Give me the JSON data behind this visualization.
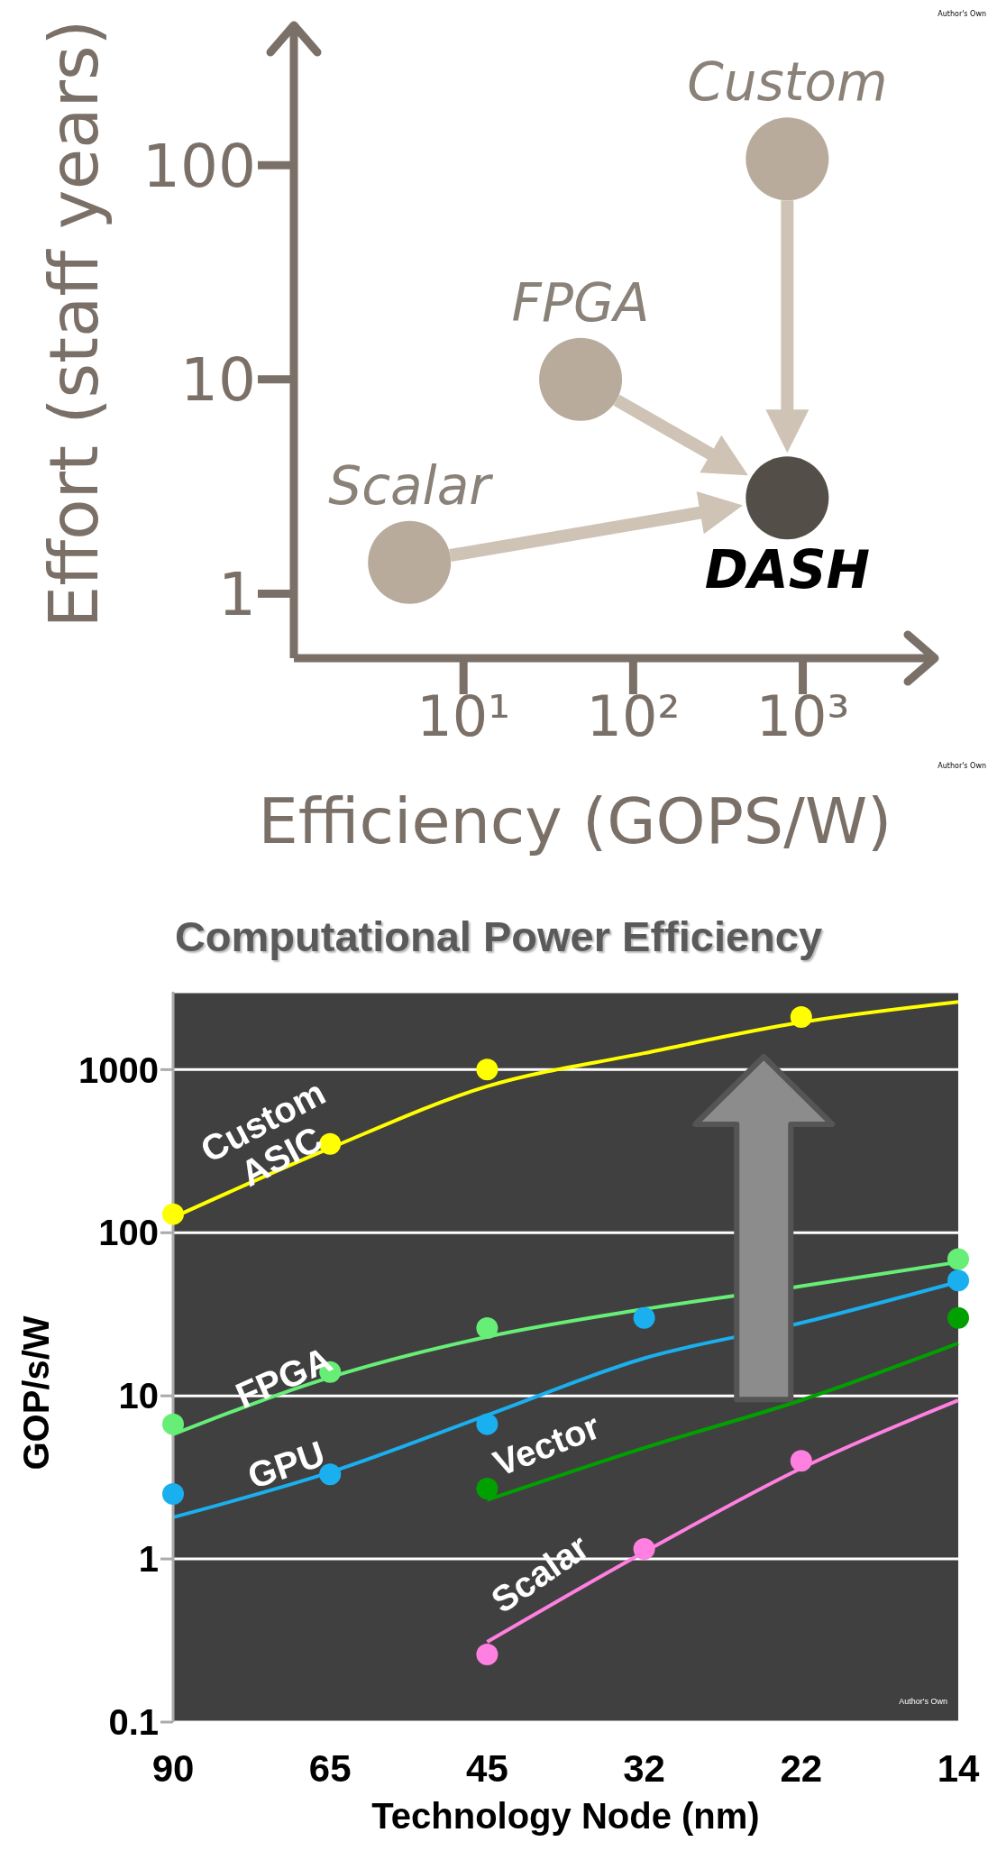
{
  "chart_data": [
    {
      "type": "scatter",
      "xlabel": "Efficiency (GOPS/W)",
      "ylabel": "Effort (staff years)",
      "log": "xy",
      "xlim": [
        1,
        6000
      ],
      "ylim": [
        0.5,
        450
      ],
      "xticks": [
        {
          "value": 10,
          "label": "10¹"
        },
        {
          "value": 100,
          "label": "10²"
        },
        {
          "value": 1000,
          "label": "10³"
        }
      ],
      "yticks": [
        1,
        10,
        100
      ],
      "annotations": [
        "Author's Own",
        "Author's Own"
      ],
      "series": [
        {
          "name": "Scalar",
          "color": "#b8ab9c",
          "x": [
            4.8
          ],
          "values": [
            1.4
          ]
        },
        {
          "name": "FPGA",
          "color": "#b8ab9c",
          "x": [
            49
          ],
          "values": [
            10
          ]
        },
        {
          "name": "Custom",
          "color": "#b8ab9c",
          "x": [
            810
          ],
          "values": [
            107
          ]
        },
        {
          "name": "DASH",
          "color": "#544e48",
          "x": [
            810
          ],
          "values": [
            2.8
          ]
        }
      ]
    },
    {
      "type": "line",
      "title": "Computational Power Efficiency",
      "xlabel": "Technology Node (nm)",
      "ylabel": "GOP/s/W",
      "categories": [
        "90",
        "65",
        "45",
        "32",
        "22",
        "14"
      ],
      "log": "y",
      "ylim": [
        0.1,
        3000
      ],
      "yticks": [
        0.1,
        1,
        10,
        100,
        1000
      ],
      "grid": "y",
      "annotations": [
        "Author's Own"
      ],
      "series": [
        {
          "name": "Custom ASIC",
          "color": "#ffff00",
          "values": [
            124,
            330,
            790,
            1260,
            1950,
            2600
          ]
        },
        {
          "name": "FPGA",
          "color": "#66ee77",
          "values": [
            5.8,
            13,
            23,
            34,
            47,
            66
          ]
        },
        {
          "name": "GPU",
          "color": "#1ab0f0",
          "values": [
            1.8,
            3.4,
            7.6,
            17,
            28,
            50
          ]
        },
        {
          "name": "Vector",
          "color": "#00a000",
          "values": [
            null,
            null,
            2.3,
            4.8,
            9.4,
            21
          ]
        },
        {
          "name": "Scalar",
          "color": "#ff80e0",
          "values": [
            null,
            null,
            0.31,
            1.1,
            3.6,
            9.4
          ]
        },
        {
          "type": "scatter",
          "color": "#ffff00",
          "values": [
            130,
            350,
            1000,
            null,
            2100,
            null
          ]
        },
        {
          "type": "scatter",
          "color": "#66ee77",
          "values": [
            6.7,
            14,
            26,
            null,
            null,
            69
          ]
        },
        {
          "type": "scatter",
          "color": "#1ab0f0",
          "values": [
            2.5,
            3.3,
            6.7,
            30,
            null,
            51
          ]
        },
        {
          "type": "scatter",
          "color": "#00a000",
          "values": [
            null,
            null,
            2.7,
            null,
            null,
            30
          ]
        },
        {
          "type": "scatter",
          "color": "#ff80e0",
          "values": [
            null,
            null,
            0.26,
            1.15,
            4.0,
            null
          ]
        }
      ]
    }
  ]
}
